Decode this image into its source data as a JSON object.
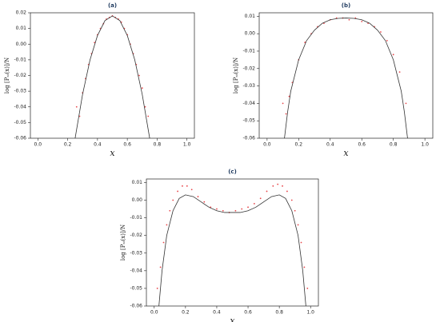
{
  "chart_data": [
    {
      "type": "scatter",
      "title": "(a)",
      "xlabel": "x",
      "ylabel": "log [Pₛₜ(x)]/N",
      "xlim": [
        -0.05,
        1.05
      ],
      "ylim": [
        -0.06,
        0.02
      ],
      "xticks": [
        {
          "value": 0,
          "label": "0.0"
        },
        0.2,
        0.4,
        0.6,
        0.8,
        {
          "value": 1,
          "label": "1.0"
        }
      ],
      "yticks": [
        -0.06,
        -0.05,
        -0.04,
        -0.03,
        -0.02,
        -0.01,
        {
          "value": 0,
          "label": "0.00"
        },
        0.01,
        0.02
      ],
      "series": [
        {
          "mode": "markers",
          "color": "#e8474b",
          "x": [
            0.26,
            0.28,
            0.3,
            0.32,
            0.34,
            0.36,
            0.38,
            0.4,
            0.42,
            0.44,
            0.46,
            0.48,
            0.5,
            0.52,
            0.54,
            0.56,
            0.58,
            0.6,
            0.62,
            0.64,
            0.66,
            0.68,
            0.7,
            0.72,
            0.74
          ],
          "values": [
            -0.04,
            -0.046,
            -0.031,
            -0.022,
            -0.013,
            -0.006,
            0.001,
            0.006,
            0.01,
            0.013,
            0.016,
            0.017,
            0.018,
            0.017,
            0.016,
            0.014,
            0.01,
            0.006,
            0.0,
            -0.006,
            -0.013,
            -0.02,
            -0.028,
            -0.04,
            -0.046
          ]
        },
        {
          "mode": "line",
          "color": "#333333",
          "x": [
            0.25,
            0.3,
            0.35,
            0.4,
            0.45,
            0.5,
            0.55,
            0.6,
            0.65,
            0.7,
            0.75
          ],
          "values": [
            -0.06,
            -0.032,
            -0.01,
            0.0055,
            0.015,
            0.018,
            0.015,
            0.0055,
            -0.01,
            -0.032,
            -0.06
          ]
        }
      ]
    },
    {
      "type": "scatter",
      "title": "(b)",
      "xlabel": "x",
      "ylabel": "log [Pₛₜ(x)]/N",
      "xlim": [
        -0.05,
        1.05
      ],
      "ylim": [
        -0.06,
        0.012
      ],
      "xticks": [
        {
          "value": 0,
          "label": "0.0"
        },
        0.2,
        0.4,
        0.6,
        0.8,
        {
          "value": 1,
          "label": "1.0"
        }
      ],
      "yticks": [
        -0.06,
        -0.05,
        -0.04,
        -0.03,
        -0.02,
        -0.01,
        {
          "value": 0,
          "label": "0.00"
        },
        0.01
      ],
      "series": [
        {
          "mode": "markers",
          "color": "#e8474b",
          "x": [
            0.1,
            0.12,
            0.14,
            0.16,
            0.2,
            0.24,
            0.28,
            0.32,
            0.36,
            0.4,
            0.44,
            0.48,
            0.52,
            0.56,
            0.6,
            0.64,
            0.68,
            0.72,
            0.76,
            0.8,
            0.84,
            0.88
          ],
          "values": [
            -0.04,
            -0.046,
            -0.036,
            -0.028,
            -0.015,
            -0.005,
            0.0,
            0.004,
            0.006,
            0.008,
            0.009,
            0.009,
            0.008,
            0.009,
            0.007,
            0.006,
            0.004,
            0.001,
            -0.004,
            -0.012,
            -0.022,
            -0.04
          ]
        },
        {
          "mode": "line",
          "color": "#333333",
          "x": [
            0.11,
            0.13,
            0.15,
            0.2,
            0.25,
            0.3,
            0.35,
            0.4,
            0.45,
            0.5,
            0.55,
            0.6,
            0.65,
            0.7,
            0.75,
            0.8,
            0.85,
            0.87,
            0.89
          ],
          "values": [
            -0.06,
            -0.045,
            -0.033,
            -0.015,
            -0.004,
            0.002,
            0.006,
            0.008,
            0.0088,
            0.009,
            0.0088,
            0.008,
            0.006,
            0.002,
            -0.004,
            -0.015,
            -0.033,
            -0.045,
            -0.06
          ]
        }
      ]
    },
    {
      "type": "scatter",
      "title": "(c)",
      "xlabel": "x",
      "ylabel": "log [Pₛₜ(x)]/N",
      "xlim": [
        -0.05,
        1.05
      ],
      "ylim": [
        -0.06,
        0.012
      ],
      "xticks": [
        {
          "value": 0,
          "label": "0.0"
        },
        0.2,
        0.4,
        0.6,
        0.8,
        {
          "value": 1,
          "label": "1.0"
        }
      ],
      "yticks": [
        -0.06,
        -0.05,
        -0.04,
        -0.03,
        -0.02,
        -0.01,
        {
          "value": 0,
          "label": "0.00"
        },
        0.01
      ],
      "series": [
        {
          "mode": "markers",
          "color": "#e8474b",
          "x": [
            0.02,
            0.04,
            0.06,
            0.08,
            0.1,
            0.12,
            0.15,
            0.18,
            0.21,
            0.24,
            0.28,
            0.32,
            0.36,
            0.4,
            0.44,
            0.48,
            0.52,
            0.56,
            0.6,
            0.64,
            0.68,
            0.72,
            0.76,
            0.79,
            0.82,
            0.85,
            0.88,
            0.9,
            0.92,
            0.94,
            0.96,
            0.98
          ],
          "values": [
            -0.05,
            -0.038,
            -0.024,
            -0.014,
            -0.006,
            0.0,
            0.005,
            0.008,
            0.008,
            0.006,
            0.002,
            -0.001,
            -0.004,
            -0.005,
            -0.006,
            -0.007,
            -0.006,
            -0.005,
            -0.004,
            -0.002,
            0.001,
            0.005,
            0.008,
            0.009,
            0.008,
            0.005,
            0.0,
            -0.006,
            -0.014,
            -0.024,
            -0.038,
            -0.05
          ]
        },
        {
          "mode": "line",
          "color": "#333333",
          "x": [
            0.03,
            0.05,
            0.08,
            0.12,
            0.16,
            0.2,
            0.25,
            0.3,
            0.35,
            0.4,
            0.45,
            0.5,
            0.55,
            0.6,
            0.65,
            0.7,
            0.75,
            0.8,
            0.84,
            0.88,
            0.92,
            0.95,
            0.97
          ],
          "values": [
            -0.06,
            -0.04,
            -0.02,
            -0.006,
            0.001,
            0.003,
            0.002,
            -0.001,
            -0.004,
            -0.006,
            -0.007,
            -0.007,
            -0.007,
            -0.006,
            -0.004,
            -0.001,
            0.002,
            0.003,
            0.001,
            -0.006,
            -0.02,
            -0.04,
            -0.06
          ]
        }
      ]
    }
  ]
}
